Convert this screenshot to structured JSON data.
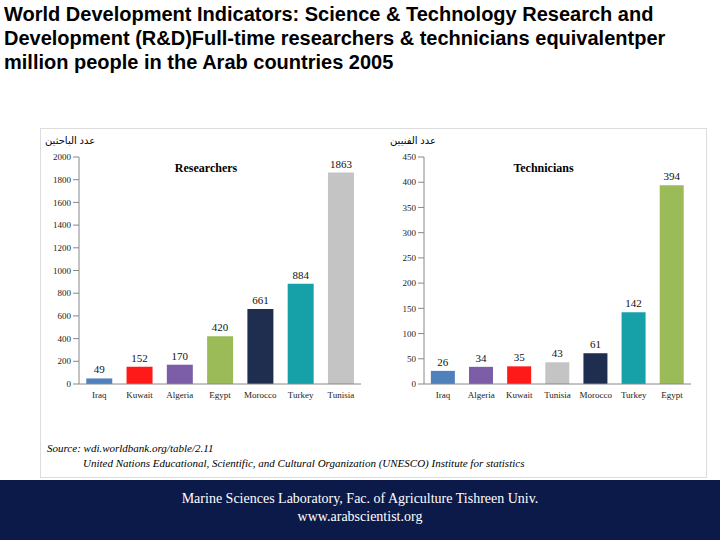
{
  "slide": {
    "title": "World Development Indicators: Science & Technology Research and Development (R&D)Full-time researchers & technicians equivalentper million people in the Arab countries 2005",
    "source": [
      "Source: wdi.worldbank.org/table/2.11",
      "United Nations Educational, Scientific, and Cultural Organization (UNESCO) Institute for statistics"
    ],
    "footer": [
      "Marine Sciences Laboratory, Fac. of Agriculture Tishreen Univ.",
      "www.arabscientist.org"
    ]
  },
  "chart_data": [
    {
      "type": "bar",
      "title": "Researchers",
      "y_label": "عدد الباحثين",
      "categories": [
        "Iraq",
        "Kuwait",
        "Algeria",
        "Egypt",
        "Morocco",
        "Turkey",
        "Tunisia"
      ],
      "values": [
        49,
        152,
        170,
        420,
        661,
        884,
        1863
      ],
      "colors": [
        "#4f81bd",
        "#ff1a1a",
        "#7b5ea7",
        "#9bbb59",
        "#1f2d4e",
        "#16a0a8",
        "#c4c4c4"
      ],
      "ylim": [
        0,
        2000
      ],
      "yticks": [
        0,
        200,
        400,
        600,
        800,
        1000,
        1200,
        1400,
        1600,
        1800,
        2000
      ],
      "grid": false,
      "data_labels": true
    },
    {
      "type": "bar",
      "title": "Technicians",
      "y_label": "عدد الفنيين",
      "categories": [
        "Iraq",
        "Algeria",
        "Kuwait",
        "Tunisia",
        "Morocco",
        "Turkey",
        "Egypt"
      ],
      "values": [
        26,
        34,
        35,
        43,
        61,
        142,
        394
      ],
      "colors": [
        "#4f81bd",
        "#7b5ea7",
        "#ff1a1a",
        "#c4c4c4",
        "#1f2d4e",
        "#16a0a8",
        "#9bbb59"
      ],
      "ylim": [
        0,
        450
      ],
      "yticks": [
        0,
        50,
        100,
        150,
        200,
        250,
        300,
        350,
        400,
        450
      ],
      "grid": false,
      "data_labels": true
    }
  ]
}
